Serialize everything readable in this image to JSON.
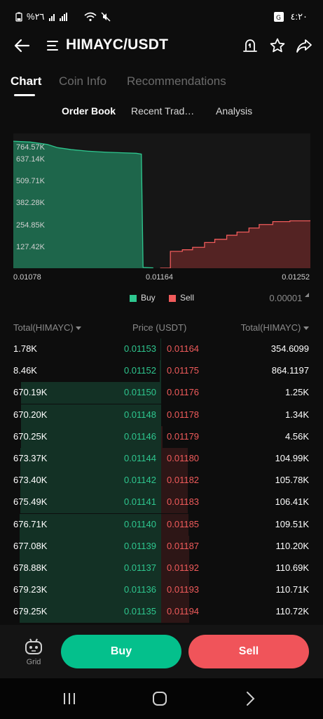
{
  "status_bar": {
    "left_text": "%٢٦",
    "time": "٤:٢٠",
    "icons": [
      "network-signal-icon",
      "wifi-icon",
      "mute-icon",
      "translate-icon"
    ]
  },
  "header": {
    "pair": "HIMAYC/USDT",
    "icons": [
      "back-arrow-icon",
      "menu-icon",
      "alert-icon",
      "star-icon",
      "share-icon"
    ]
  },
  "tabs": [
    {
      "label": "Chart",
      "active": true
    },
    {
      "label": "Coin Info",
      "active": false
    },
    {
      "label": "Recommendations",
      "active": false
    }
  ],
  "subtabs": [
    {
      "label": "Order Book",
      "active": true
    },
    {
      "label": "Recent Trad…",
      "active": false
    },
    {
      "label": "Analysis",
      "active": false
    }
  ],
  "chart_data": {
    "type": "area",
    "ylim": [
      0,
      830000
    ],
    "xlim": [
      0.01078,
      0.01252
    ],
    "y_ticks": [
      "764.57K",
      "637.14K",
      "509.71K",
      "382.28K",
      "254.85K",
      "127.42K"
    ],
    "x_ticks": [
      "0.01078",
      "0.01164",
      "0.01252"
    ],
    "series": [
      {
        "name": "Buy",
        "color": "#2ec78f",
        "x": [
          0.01078,
          0.01088,
          0.01098,
          0.01104,
          0.01112,
          0.01122,
          0.01132,
          0.01142,
          0.0115,
          0.01153,
          0.01154,
          0.0116
        ],
        "y": [
          790000,
          785000,
          770000,
          750000,
          738000,
          728000,
          722000,
          718000,
          715000,
          710000,
          5000,
          2000
        ]
      },
      {
        "name": "Sell",
        "color": "#f05b5b",
        "x": [
          0.01164,
          0.0117,
          0.01177,
          0.01183,
          0.0119,
          0.01196,
          0.01203,
          0.01209,
          0.01216,
          0.01222,
          0.0123,
          0.0124,
          0.01252
        ],
        "y": [
          350,
          105000,
          115000,
          130000,
          160000,
          180000,
          205000,
          225000,
          250000,
          272000,
          290000,
          295000,
          298000
        ]
      }
    ],
    "legend": [
      "Buy",
      "Sell"
    ],
    "legend_placement": "bottom-center"
  },
  "tick_size": "0.00001",
  "orderbook": {
    "headers": {
      "left": "Total(HIMAYC)",
      "middle": "Price (USDT)",
      "right": "Total(HIMAYC)"
    },
    "rows": [
      {
        "bid_total": "1.78K",
        "bid_price": "0.01153",
        "ask_price": "0.01164",
        "ask_total": "354.6099",
        "bid_depth": 0.003,
        "ask_depth": 0.003
      },
      {
        "bid_total": "8.46K",
        "bid_price": "0.01152",
        "ask_price": "0.01175",
        "ask_total": "864.1197",
        "bid_depth": 0.012,
        "ask_depth": 0.008
      },
      {
        "bid_total": "670.19K",
        "bid_price": "0.01150",
        "ask_price": "0.01176",
        "ask_total": "1.25K",
        "bid_depth": 0.987,
        "ask_depth": 0.011
      },
      {
        "bid_total": "670.20K",
        "bid_price": "0.01148",
        "ask_price": "0.01178",
        "ask_total": "1.34K",
        "bid_depth": 0.987,
        "ask_depth": 0.012
      },
      {
        "bid_total": "670.25K",
        "bid_price": "0.01146",
        "ask_price": "0.01179",
        "ask_total": "4.56K",
        "bid_depth": 0.987,
        "ask_depth": 0.041
      },
      {
        "bid_total": "673.37K",
        "bid_price": "0.01144",
        "ask_price": "0.01180",
        "ask_total": "104.99K",
        "bid_depth": 0.991,
        "ask_depth": 0.943
      },
      {
        "bid_total": "673.40K",
        "bid_price": "0.01142",
        "ask_price": "0.01182",
        "ask_total": "105.78K",
        "bid_depth": 0.991,
        "ask_depth": 0.95
      },
      {
        "bid_total": "675.49K",
        "bid_price": "0.01141",
        "ask_price": "0.01183",
        "ask_total": "106.41K",
        "bid_depth": 0.994,
        "ask_depth": 0.956
      },
      {
        "bid_total": "676.71K",
        "bid_price": "0.01140",
        "ask_price": "0.01185",
        "ask_total": "109.51K",
        "bid_depth": 0.996,
        "ask_depth": 0.984
      },
      {
        "bid_total": "677.08K",
        "bid_price": "0.01139",
        "ask_price": "0.01187",
        "ask_total": "110.20K",
        "bid_depth": 0.997,
        "ask_depth": 0.99
      },
      {
        "bid_total": "678.88K",
        "bid_price": "0.01137",
        "ask_price": "0.01192",
        "ask_total": "110.69K",
        "bid_depth": 0.999,
        "ask_depth": 0.994
      },
      {
        "bid_total": "679.23K",
        "bid_price": "0.01136",
        "ask_price": "0.01193",
        "ask_total": "110.71K",
        "bid_depth": 1.0,
        "ask_depth": 0.995
      },
      {
        "bid_total": "679.25K",
        "bid_price": "0.01135",
        "ask_price": "0.01194",
        "ask_total": "110.72K",
        "bid_depth": 1.0,
        "ask_depth": 0.995
      }
    ]
  },
  "actions": {
    "grid_label": "Grid",
    "buy_label": "Buy",
    "sell_label": "Sell"
  },
  "colors": {
    "buy": "#2ec78f",
    "sell": "#f05b5b",
    "buy_button": "#04c08c",
    "sell_button": "#f0545a",
    "background": "#0d0d0d"
  }
}
